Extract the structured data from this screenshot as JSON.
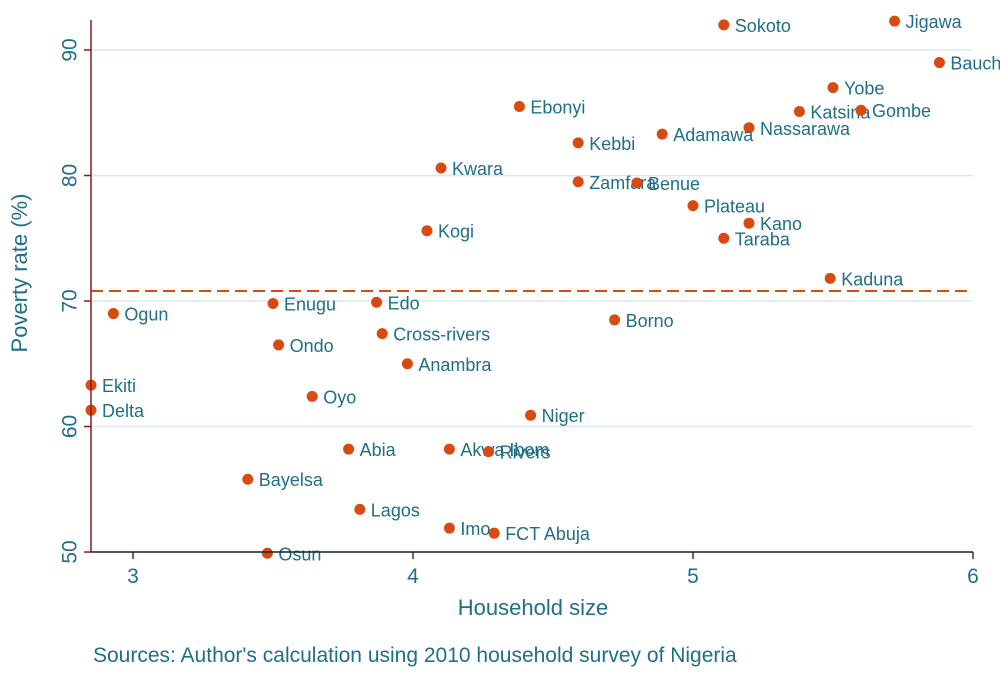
{
  "chart_data": {
    "type": "scatter",
    "title": "",
    "xlabel": "Household size",
    "ylabel": "Poverty rate (%)",
    "xlim": [
      2.85,
      6.0
    ],
    "ylim": [
      50,
      93
    ],
    "xticks": [
      3,
      4,
      5,
      6
    ],
    "yticks": [
      50,
      60,
      70,
      80,
      90
    ],
    "grid": true,
    "reference_line": {
      "y": 70.8,
      "style": "dashed"
    },
    "source": "Sources: Author's calculation using 2010 household survey of Nigeria",
    "colors": {
      "marker": "#d94a12",
      "text": "#1f6f86",
      "axis": "#8b1a1a",
      "grid": "#dde8ee",
      "refline": "#d94a12"
    },
    "points": [
      {
        "label": "Sokoto",
        "x": 5.11,
        "y": 92.0
      },
      {
        "label": "Jigawa",
        "x": 5.72,
        "y": 92.3
      },
      {
        "label": "Bauchi",
        "x": 5.88,
        "y": 89.0
      },
      {
        "label": "Yobe",
        "x": 5.5,
        "y": 87.0
      },
      {
        "label": "Katsina",
        "x": 5.38,
        "y": 85.1
      },
      {
        "label": "Gombe",
        "x": 5.6,
        "y": 85.2
      },
      {
        "label": "Ebonyi",
        "x": 4.38,
        "y": 85.5
      },
      {
        "label": "Nassarawa",
        "x": 5.2,
        "y": 83.8
      },
      {
        "label": "Adamawa",
        "x": 4.89,
        "y": 83.3
      },
      {
        "label": "Kebbi",
        "x": 4.59,
        "y": 82.6
      },
      {
        "label": "Kwara",
        "x": 4.1,
        "y": 80.6
      },
      {
        "label": "Zamfara",
        "x": 4.59,
        "y": 79.5
      },
      {
        "label": "Benue",
        "x": 4.8,
        "y": 79.4
      },
      {
        "label": "Plateau",
        "x": 5.0,
        "y": 77.6
      },
      {
        "label": "Kano",
        "x": 5.2,
        "y": 76.2
      },
      {
        "label": "Taraba",
        "x": 5.11,
        "y": 75.0
      },
      {
        "label": "Kogi",
        "x": 4.05,
        "y": 75.6
      },
      {
        "label": "Kaduna",
        "x": 5.49,
        "y": 71.8
      },
      {
        "label": "Enugu",
        "x": 3.5,
        "y": 69.8
      },
      {
        "label": "Edo",
        "x": 3.87,
        "y": 69.9
      },
      {
        "label": "Ogun",
        "x": 2.93,
        "y": 69.0
      },
      {
        "label": "Cross-rivers",
        "x": 3.89,
        "y": 67.4
      },
      {
        "label": "Borno",
        "x": 4.72,
        "y": 68.5
      },
      {
        "label": "Ondo",
        "x": 3.52,
        "y": 66.5
      },
      {
        "label": "Anambra",
        "x": 3.98,
        "y": 65.0
      },
      {
        "label": "Ekiti",
        "x": 2.85,
        "y": 63.3
      },
      {
        "label": "Oyo",
        "x": 3.64,
        "y": 62.4
      },
      {
        "label": "Delta",
        "x": 2.85,
        "y": 61.3
      },
      {
        "label": "Niger",
        "x": 4.42,
        "y": 60.9
      },
      {
        "label": "Abia",
        "x": 3.77,
        "y": 58.2
      },
      {
        "label": "Akwa Ibom",
        "x": 4.13,
        "y": 58.2
      },
      {
        "label": "Rivers",
        "x": 4.27,
        "y": 58.0
      },
      {
        "label": "Bayelsa",
        "x": 3.41,
        "y": 55.8
      },
      {
        "label": "Lagos",
        "x": 3.81,
        "y": 53.4
      },
      {
        "label": "Imo",
        "x": 4.13,
        "y": 51.9
      },
      {
        "label": "FCT Abuja",
        "x": 4.29,
        "y": 51.5
      },
      {
        "label": "Osun",
        "x": 3.48,
        "y": 49.9
      }
    ]
  }
}
